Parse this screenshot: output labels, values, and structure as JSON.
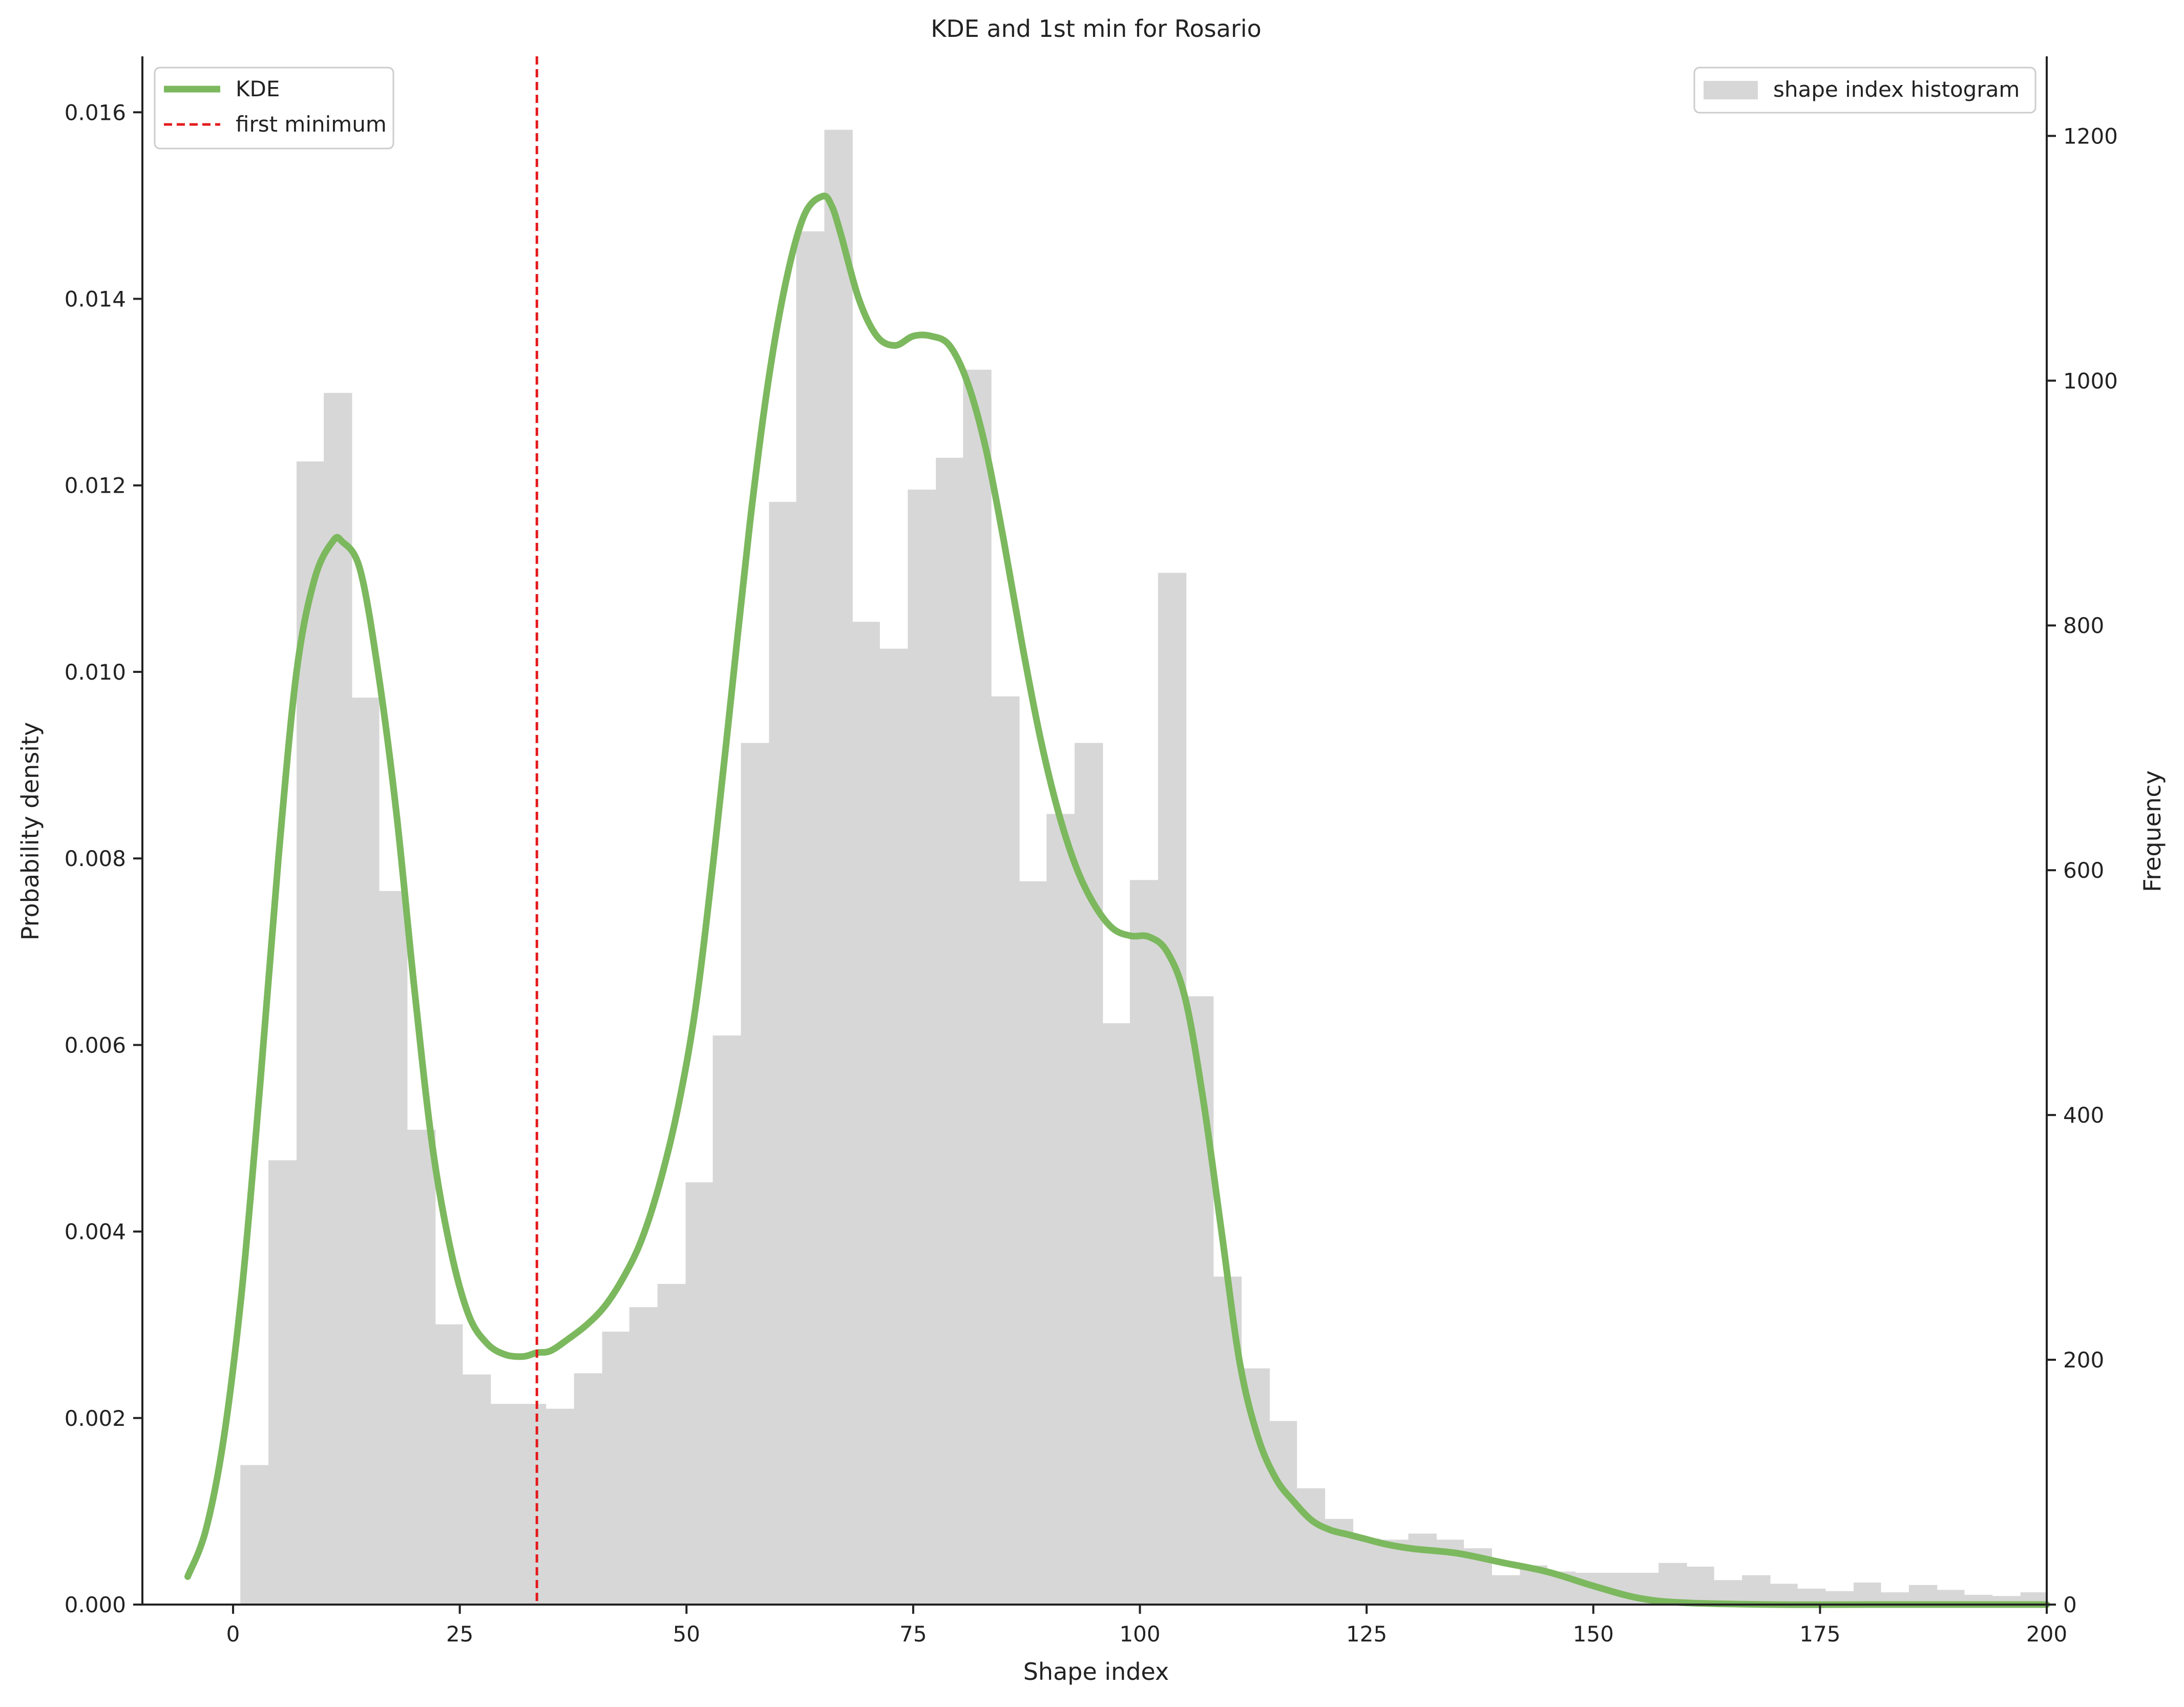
{
  "chart_data": {
    "type": "bar",
    "title": "KDE and 1st min for Rosario",
    "xlabel": "Shape index",
    "ylabel": "Probability density",
    "y2label": "Frequency",
    "xlim": [
      -10,
      200
    ],
    "ylim": [
      0,
      0.0166
    ],
    "y2lim": [
      0,
      1265
    ],
    "x_ticks": [
      0,
      25,
      50,
      75,
      100,
      125,
      150,
      175,
      200
    ],
    "y_ticks": [
      0.0,
      0.002,
      0.004,
      0.006,
      0.008,
      0.01,
      0.012,
      0.014,
      0.016
    ],
    "y_tick_labels": [
      "0.000",
      "0.002",
      "0.004",
      "0.006",
      "0.008",
      "0.010",
      "0.012",
      "0.014",
      "0.016"
    ],
    "y2_ticks": [
      0,
      200,
      400,
      600,
      800,
      1000,
      1200
    ],
    "grid": false,
    "histogram": {
      "name": "shape index histogram",
      "color": "#d7d7d7",
      "bin_edges": [
        0.8,
        3.9,
        7.0,
        10.0,
        13.1,
        16.1,
        19.2,
        22.3,
        25.3,
        28.4,
        31.5,
        34.5,
        37.6,
        40.7,
        43.7,
        46.8,
        49.9,
        52.9,
        56.0,
        59.1,
        62.1,
        65.2,
        68.3,
        71.3,
        74.4,
        77.5,
        80.5,
        83.6,
        86.7,
        89.7,
        92.8,
        95.9,
        98.9,
        102.0,
        105.1,
        108.1,
        111.2,
        114.3,
        117.3,
        120.4,
        123.5,
        126.5,
        129.6,
        132.7,
        135.7,
        138.8,
        141.9,
        144.9,
        148.0,
        151.1,
        154.1,
        157.2,
        160.3,
        163.3,
        166.4,
        169.5,
        172.5,
        175.6,
        178.7,
        181.7,
        184.8,
        187.9,
        190.9,
        194.0,
        197.1,
        200.1
      ],
      "frequencies": [
        114,
        363,
        934,
        990,
        741,
        583,
        388,
        229,
        188,
        164,
        164,
        160,
        189,
        223,
        243,
        262,
        345,
        465,
        704,
        901,
        1122,
        1205,
        803,
        781,
        911,
        937,
        1009,
        742,
        591,
        646,
        704,
        475,
        592,
        843,
        497,
        268,
        193,
        150,
        95,
        70,
        54,
        53,
        58,
        53,
        46,
        24,
        32,
        27,
        26,
        26,
        26,
        34,
        31,
        20,
        24,
        17,
        13,
        11,
        18,
        10,
        16,
        12,
        8,
        7,
        10
      ]
    },
    "kde": {
      "name": "KDE",
      "color": "#7cb85e",
      "x": [
        -5,
        -3,
        -1,
        1,
        3,
        5,
        7,
        9,
        11,
        12,
        14,
        16,
        18,
        20,
        22,
        24,
        26,
        28,
        30,
        32,
        33.5,
        35,
        37,
        39,
        41,
        43,
        45,
        47,
        49,
        51,
        53,
        55,
        57,
        59,
        61,
        63,
        65,
        66,
        67,
        69,
        71,
        73,
        75,
        77,
        79,
        81,
        83,
        85,
        87,
        89,
        91,
        93,
        95,
        97,
        99,
        101,
        103,
        105,
        107,
        109,
        111,
        113,
        115,
        117,
        119,
        121,
        123,
        125,
        127,
        130,
        135,
        140,
        145,
        150,
        155,
        160,
        170,
        180,
        190,
        200
      ],
      "y": [
        0.0003,
        0.0008,
        0.0018,
        0.0034,
        0.0056,
        0.008,
        0.01,
        0.011,
        0.0114,
        0.0114,
        0.0111,
        0.01,
        0.0085,
        0.0066,
        0.0049,
        0.0038,
        0.0031,
        0.0028,
        0.00268,
        0.00266,
        0.0027,
        0.00272,
        0.00285,
        0.003,
        0.0032,
        0.0035,
        0.0039,
        0.0045,
        0.0053,
        0.0064,
        0.008,
        0.0098,
        0.0116,
        0.0131,
        0.0142,
        0.0149,
        0.0151,
        0.015,
        0.0147,
        0.014,
        0.0136,
        0.0135,
        0.0136,
        0.0136,
        0.0135,
        0.0131,
        0.0124,
        0.0114,
        0.0103,
        0.0093,
        0.0085,
        0.0079,
        0.0075,
        0.00725,
        0.00717,
        0.00716,
        0.007,
        0.0065,
        0.0054,
        0.004,
        0.0026,
        0.0018,
        0.00135,
        0.0011,
        0.0009,
        0.0008,
        0.00075,
        0.0007,
        0.00065,
        0.0006,
        0.00055,
        0.00045,
        0.00035,
        0.0002,
        7e-05,
        2e-05,
        0.0,
        0.0,
        0.0,
        0.0
      ]
    },
    "first_minimum": {
      "name": "first minimum",
      "x": 33.5,
      "color": "#e41a1c"
    },
    "legend_left": {
      "placement": "top-left",
      "entries": [
        "KDE",
        "first minimum"
      ]
    },
    "legend_right": {
      "placement": "top-right",
      "entries": [
        "shape index histogram"
      ]
    }
  }
}
